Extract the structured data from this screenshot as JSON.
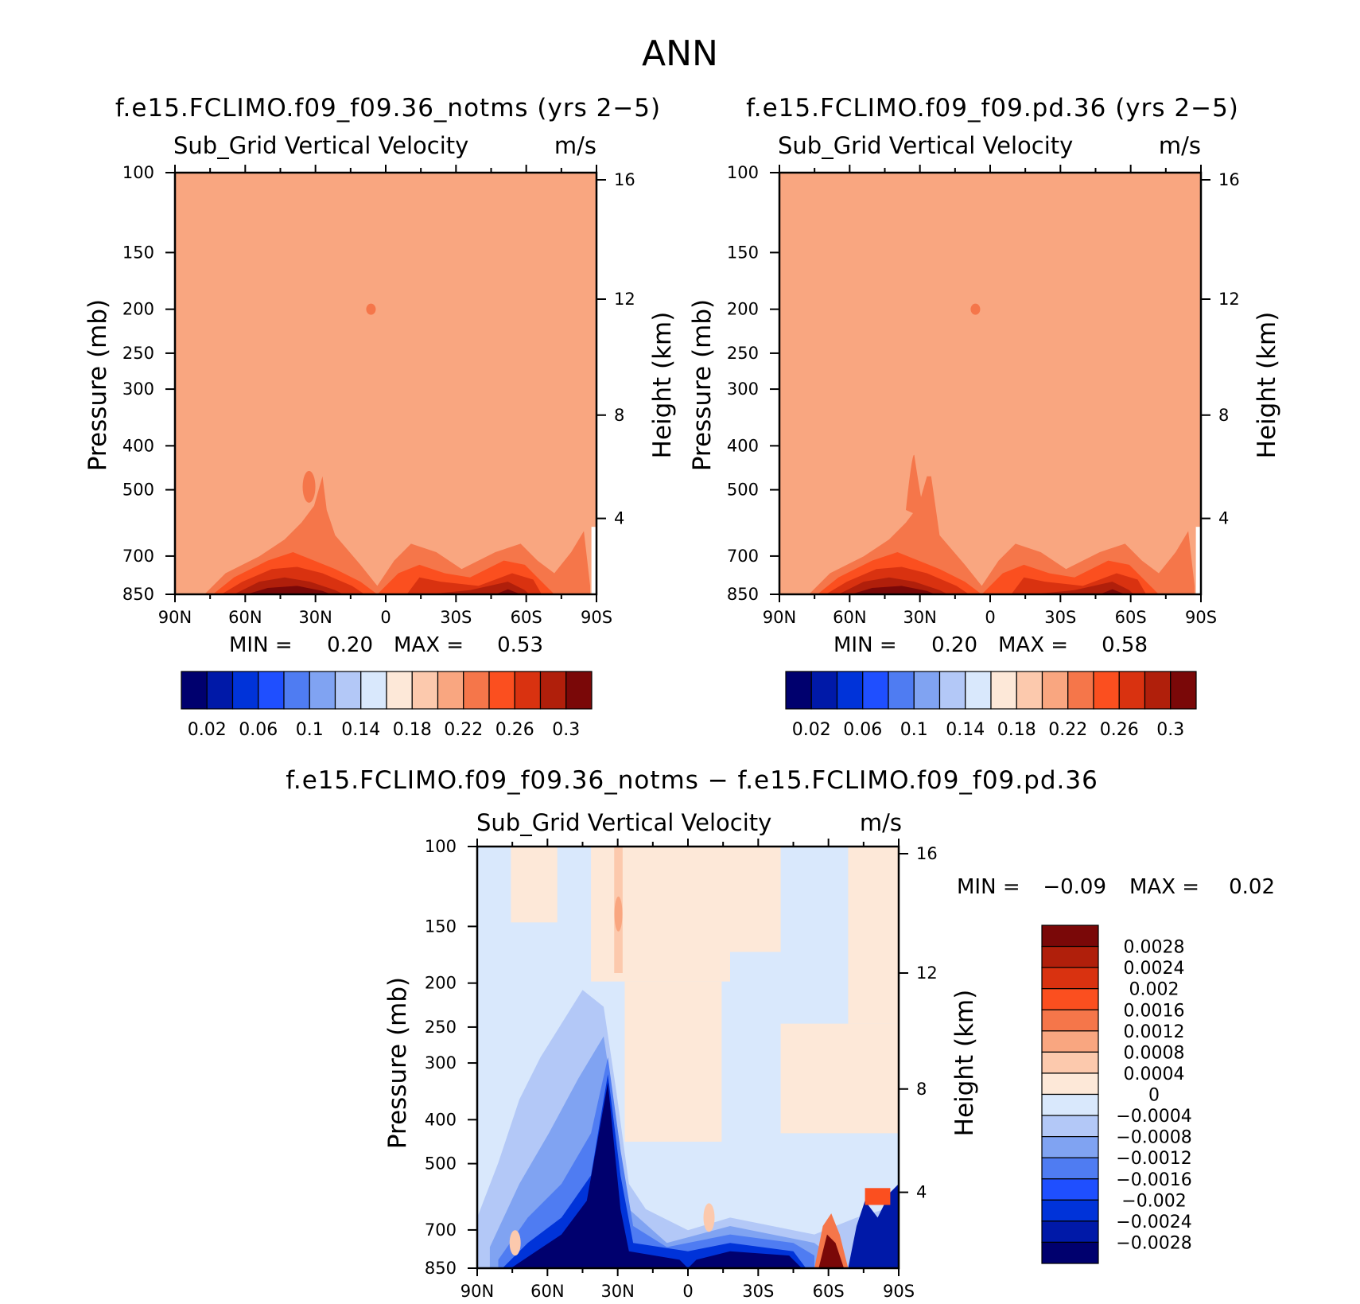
{
  "figure": {
    "title": "ANN"
  },
  "colors": {
    "abs_levels": [
      "#00006e",
      "#0019a8",
      "#0033d9",
      "#1f4fff",
      "#4f7cf2",
      "#80a3f2",
      "#b3c8f7",
      "#d9e8fc",
      "#fde8d8",
      "#fcc9ad",
      "#f9a680",
      "#f5764a",
      "#fb4f1f",
      "#d93210",
      "#b01f0b",
      "#7a0808"
    ],
    "diff_levels": [
      "#00006e",
      "#0019a8",
      "#0033d9",
      "#1f4fff",
      "#4f7cf2",
      "#80a3f2",
      "#b3c8f7",
      "#d9e8fc",
      "#fde8d8",
      "#fcc9ad",
      "#f9a680",
      "#f5764a",
      "#fb4f1f",
      "#d93210",
      "#b01f0b",
      "#7a0808"
    ]
  },
  "chart_data": [
    {
      "type": "heatmap",
      "id": "panel-notms",
      "title": "f.e15.FCLIMO.f09_f09.36_notms (yrs 2−5)",
      "field": "Sub_Grid Vertical Velocity",
      "units": "m/s",
      "ylabel": "Pressure (mb)",
      "ylabel_right": "Height (km)",
      "x_ticks": [
        "90N",
        "60N",
        "30N",
        "0",
        "30S",
        "60S",
        "90S"
      ],
      "y_ticks": [
        "100",
        "150",
        "200",
        "250",
        "300",
        "400",
        "500",
        "700",
        "850"
      ],
      "y_ticks_right": [
        "16",
        "12",
        "8",
        "4"
      ],
      "min_label": "MIN =",
      "min_value": "0.20",
      "max_label": "MAX =",
      "max_value": "0.53",
      "colorbar_labels": [
        "0.02",
        "0.06",
        "0.1",
        "0.14",
        "0.18",
        "0.22",
        "0.26",
        "0.3"
      ],
      "background_level": 10,
      "peak_max": 0.53
    },
    {
      "type": "heatmap",
      "id": "panel-pd",
      "title": "f.e15.FCLIMO.f09_f09.pd.36 (yrs 2−5)",
      "field": "Sub_Grid Vertical Velocity",
      "units": "m/s",
      "ylabel": "Pressure (mb)",
      "ylabel_right": "Height (km)",
      "x_ticks": [
        "90N",
        "60N",
        "30N",
        "0",
        "30S",
        "60S",
        "90S"
      ],
      "y_ticks": [
        "100",
        "150",
        "200",
        "250",
        "300",
        "400",
        "500",
        "700",
        "850"
      ],
      "y_ticks_right": [
        "16",
        "12",
        "8",
        "4"
      ],
      "min_label": "MIN =",
      "min_value": "0.20",
      "max_label": "MAX =",
      "max_value": "0.58",
      "colorbar_labels": [
        "0.02",
        "0.06",
        "0.1",
        "0.14",
        "0.18",
        "0.22",
        "0.26",
        "0.3"
      ],
      "background_level": 10,
      "peak_max": 0.58
    },
    {
      "type": "heatmap",
      "id": "panel-diff",
      "title": "f.e15.FCLIMO.f09_f09.36_notms − f.e15.FCLIMO.f09_f09.pd.36",
      "field": "Sub_Grid Vertical Velocity",
      "units": "m/s",
      "ylabel": "Pressure (mb)",
      "ylabel_right": "Height (km)",
      "x_ticks": [
        "90N",
        "60N",
        "30N",
        "0",
        "30S",
        "60S",
        "90S"
      ],
      "y_ticks": [
        "100",
        "150",
        "200",
        "250",
        "300",
        "400",
        "500",
        "700",
        "850"
      ],
      "y_ticks_right": [
        "16",
        "12",
        "8",
        "4"
      ],
      "min_label": "MIN =",
      "min_value": "−0.09",
      "max_label": "MAX =",
      "max_value": "0.02",
      "colorbar_labels": [
        "0.0028",
        "0.0024",
        "0.002",
        "0.0016",
        "0.0012",
        "0.0008",
        "0.0004",
        "0",
        "−0.0004",
        "−0.0008",
        "−0.0012",
        "−0.0016",
        "−0.002",
        "−0.0024",
        "−0.0028"
      ]
    }
  ]
}
